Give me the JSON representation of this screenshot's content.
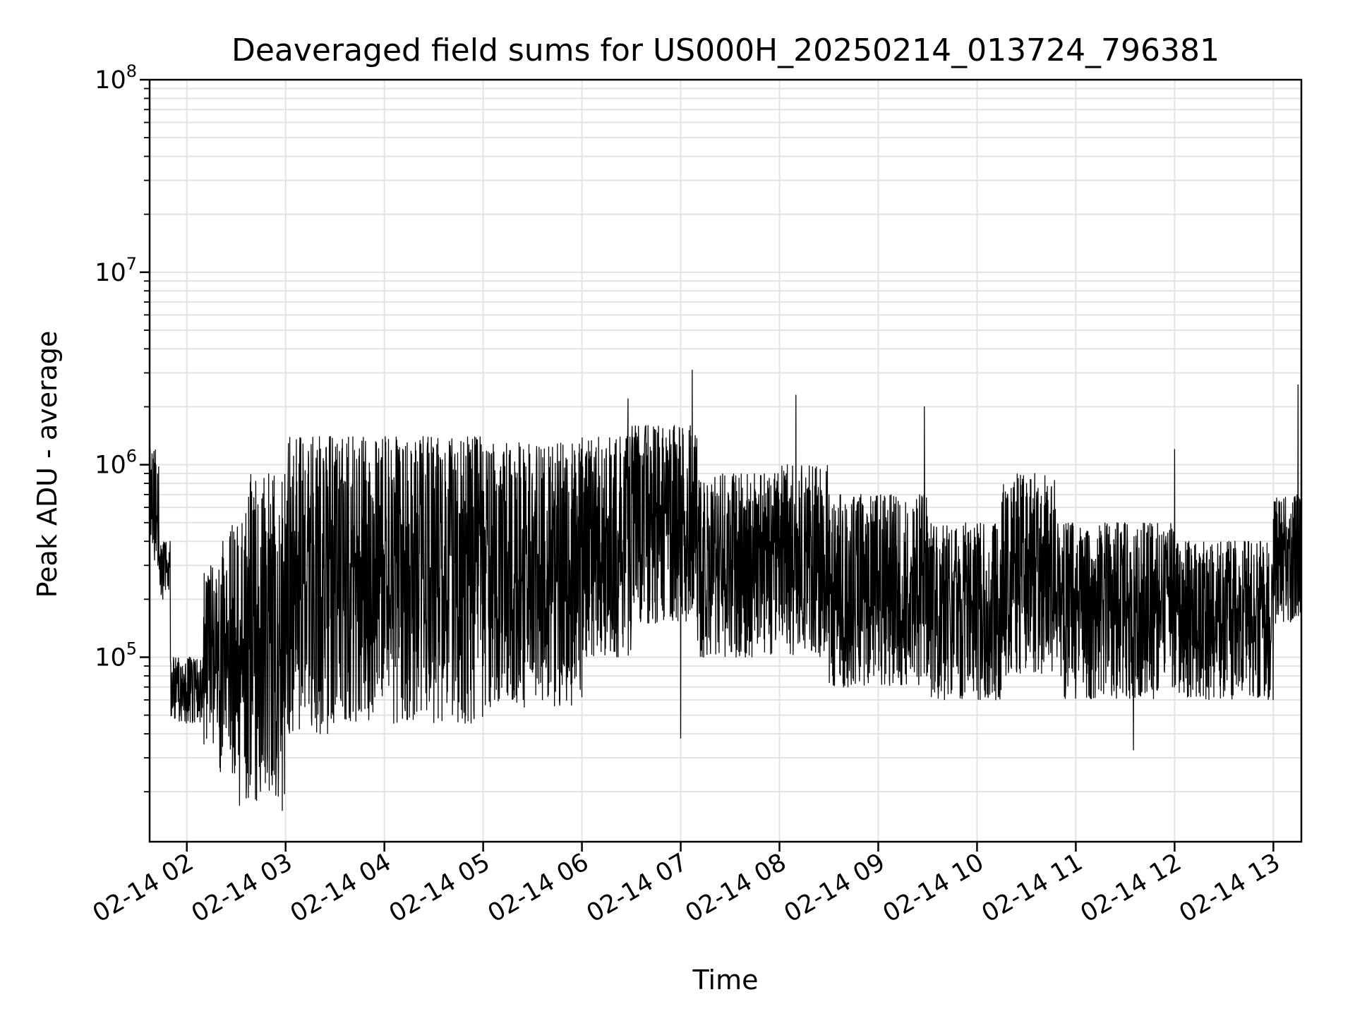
{
  "chart_data": {
    "type": "line",
    "title": "Deaveraged field sums for US000H_20250214_013724_796381",
    "xlabel": "Time",
    "ylabel": "Peak ADU - average",
    "yscale": "log",
    "ylim": [
      11000,
      100000000
    ],
    "xlim": [
      "2025-02-14T01:37:24",
      "2025-02-14T13:17:00"
    ],
    "grid": true,
    "x_ticks": [
      {
        "t": "2025-02-14T02:00:00",
        "label": "02-14 02"
      },
      {
        "t": "2025-02-14T03:00:00",
        "label": "02-14 03"
      },
      {
        "t": "2025-02-14T04:00:00",
        "label": "02-14 04"
      },
      {
        "t": "2025-02-14T05:00:00",
        "label": "02-14 05"
      },
      {
        "t": "2025-02-14T06:00:00",
        "label": "02-14 06"
      },
      {
        "t": "2025-02-14T07:00:00",
        "label": "02-14 07"
      },
      {
        "t": "2025-02-14T08:00:00",
        "label": "02-14 08"
      },
      {
        "t": "2025-02-14T09:00:00",
        "label": "02-14 09"
      },
      {
        "t": "2025-02-14T10:00:00",
        "label": "02-14 10"
      },
      {
        "t": "2025-02-14T11:00:00",
        "label": "02-14 11"
      },
      {
        "t": "2025-02-14T12:00:00",
        "label": "02-14 12"
      },
      {
        "t": "2025-02-14T13:00:00",
        "label": "02-14 13"
      }
    ],
    "y_ticks": [
      {
        "value": 100000,
        "base": "10",
        "exp": "5"
      },
      {
        "value": 1000000,
        "base": "10",
        "exp": "6"
      },
      {
        "value": 10000000,
        "base": "10",
        "exp": "7"
      },
      {
        "value": 100000000,
        "base": "10",
        "exp": "8"
      }
    ],
    "series": [
      {
        "color": "#000000",
        "segments": [
          {
            "t0": "2025-02-14T01:37:24",
            "t1": "2025-02-14T01:43:00",
            "lo": 300000,
            "hi": 1200000
          },
          {
            "t0": "2025-02-14T01:43:00",
            "t1": "2025-02-14T01:50:00",
            "lo": 200000,
            "hi": 400000
          },
          {
            "t0": "2025-02-14T01:50:00",
            "t1": "2025-02-14T02:10:00",
            "lo": 45000,
            "hi": 100000
          },
          {
            "t0": "2025-02-14T02:10:00",
            "t1": "2025-02-14T02:20:00",
            "lo": 35000,
            "hi": 300000
          },
          {
            "t0": "2025-02-14T02:20:00",
            "t1": "2025-02-14T02:35:00",
            "lo": 25000,
            "hi": 500000
          },
          {
            "t0": "2025-02-14T02:35:00",
            "t1": "2025-02-14T03:00:00",
            "lo": 18000,
            "hi": 900000
          },
          {
            "t0": "2025-02-14T03:00:00",
            "t1": "2025-02-14T03:30:00",
            "lo": 40000,
            "hi": 1400000
          },
          {
            "t0": "2025-02-14T03:30:00",
            "t1": "2025-02-14T05:00:00",
            "lo": 45000,
            "hi": 1400000
          },
          {
            "t0": "2025-02-14T05:00:00",
            "t1": "2025-02-14T06:00:00",
            "lo": 55000,
            "hi": 1300000
          },
          {
            "t0": "2025-02-14T06:00:00",
            "t1": "2025-02-14T06:30:00",
            "lo": 100000,
            "hi": 1400000
          },
          {
            "t0": "2025-02-14T06:30:00",
            "t1": "2025-02-14T07:10:00",
            "lo": 150000,
            "hi": 1600000
          },
          {
            "t0": "2025-02-14T07:10:00",
            "t1": "2025-02-14T08:00:00",
            "lo": 100000,
            "hi": 900000
          },
          {
            "t0": "2025-02-14T08:00:00",
            "t1": "2025-02-14T08:30:00",
            "lo": 100000,
            "hi": 1000000
          },
          {
            "t0": "2025-02-14T08:30:00",
            "t1": "2025-02-14T09:30:00",
            "lo": 70000,
            "hi": 700000
          },
          {
            "t0": "2025-02-14T09:30:00",
            "t1": "2025-02-14T10:15:00",
            "lo": 60000,
            "hi": 500000
          },
          {
            "t0": "2025-02-14T10:15:00",
            "t1": "2025-02-14T10:50:00",
            "lo": 80000,
            "hi": 900000
          },
          {
            "t0": "2025-02-14T10:50:00",
            "t1": "2025-02-14T12:00:00",
            "lo": 60000,
            "hi": 500000
          },
          {
            "t0": "2025-02-14T12:00:00",
            "t1": "2025-02-14T13:00:00",
            "lo": 60000,
            "hi": 400000
          },
          {
            "t0": "2025-02-14T13:00:00",
            "t1": "2025-02-14T13:17:00",
            "lo": 150000,
            "hi": 700000
          }
        ],
        "spikes": [
          {
            "t": "2025-02-14T07:07:00",
            "value": 3100000
          },
          {
            "t": "2025-02-14T06:28:00",
            "value": 2200000
          },
          {
            "t": "2025-02-14T08:10:00",
            "value": 2300000
          },
          {
            "t": "2025-02-14T09:28:00",
            "value": 2000000
          },
          {
            "t": "2025-02-14T13:15:00",
            "value": 2600000
          },
          {
            "t": "2025-02-14T12:00:00",
            "value": 1200000
          },
          {
            "t": "2025-02-14T07:00:00",
            "value": 38000
          },
          {
            "t": "2025-02-14T11:35:00",
            "value": 33000
          },
          {
            "t": "2025-02-14T02:58:00",
            "value": 16000
          },
          {
            "t": "2025-02-14T02:32:00",
            "value": 17000
          }
        ]
      }
    ]
  }
}
